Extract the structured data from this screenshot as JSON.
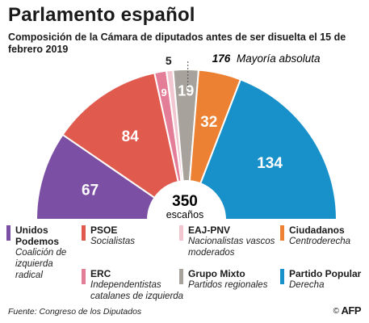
{
  "title": "Parlamento español",
  "subtitle": "Composición de la Cámara de diputados antes de ser disuelta el 15 de febrero 2019",
  "chart_data": {
    "type": "pie",
    "subtype": "parliament-semicircle",
    "total": 350,
    "total_label": "350",
    "total_unit": "escaños",
    "majority": {
      "value": 176,
      "label": "176",
      "text": "Mayoría absoluta"
    },
    "slices": [
      {
        "name": "Unidos Podemos",
        "value": 67,
        "label": "67",
        "color": "#7b4fa3",
        "label_color": "#ffffff"
      },
      {
        "name": "PSOE",
        "value": 84,
        "label": "84",
        "color": "#e05a4e",
        "label_color": "#ffffff"
      },
      {
        "name": "ERC",
        "value": 9,
        "label": "9",
        "color": "#e47d97",
        "label_color": "#ffffff"
      },
      {
        "name": "EAJ-PNV",
        "value": 5,
        "label": "5",
        "color": "#f1c6d0",
        "label_color": "#1a1a1a"
      },
      {
        "name": "Grupo Mixto",
        "value": 19,
        "label": "19",
        "color": "#a7a39c",
        "label_color": "#ffffff"
      },
      {
        "name": "Ciudadanos",
        "value": 32,
        "label": "32",
        "color": "#ec8133",
        "label_color": "#ffffff"
      },
      {
        "name": "Partido Popular",
        "value": 134,
        "label": "134",
        "color": "#1890c9",
        "label_color": "#ffffff"
      }
    ]
  },
  "legend": [
    {
      "name": "Unidos Podemos",
      "desc": "Coalición de izquierda radical",
      "color": "#7b4fa3"
    },
    {
      "name": "PSOE",
      "desc": "Socialistas",
      "color": "#e05a4e"
    },
    {
      "name": "ERC",
      "desc": "Independentistas catalanes de izquierda",
      "color": "#e47d97"
    },
    {
      "name": "EAJ-PNV",
      "desc": "Nacionalistas vascos moderados",
      "color": "#f1c6d0"
    },
    {
      "name": "Grupo Mixto",
      "desc": "Partidos regionales",
      "color": "#a7a39c"
    },
    {
      "name": "Ciudadanos",
      "desc": "Centroderecha",
      "color": "#ec8133"
    },
    {
      "name": "Partido Popular",
      "desc": "Derecha",
      "color": "#1890c9"
    }
  ],
  "source": "Fuente: Congreso de los Diputados",
  "credit": {
    "symbol": "©",
    "text": "AFP"
  }
}
